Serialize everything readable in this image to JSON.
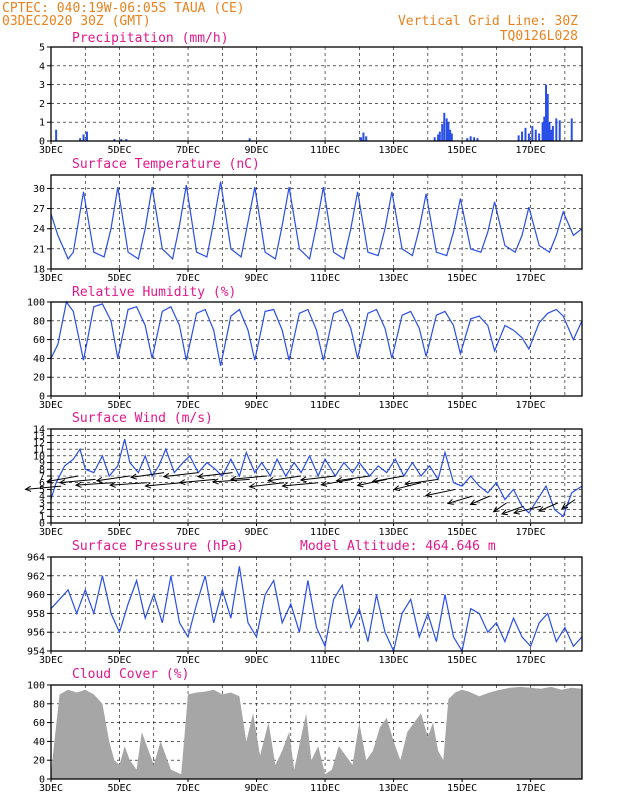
{
  "header": {
    "line1": "CPTEC:   040:19W-06:05S  TAUA (CE)",
    "line2": "03DEC2020 30Z (GMT)",
    "vgrid": "Vertical Grid Line: 30Z",
    "code": "TQ0126L028"
  },
  "colors": {
    "header": "#e8821e",
    "panel_title": "#e0198c",
    "series": "#2a4ee8",
    "cloud": "#a6a6a6",
    "wind_vector": "#000000"
  },
  "x_axis": {
    "start": "03DEC2020 30Z",
    "end_day": 18.5,
    "labels": [
      "3DEC",
      "5DEC",
      "7DEC",
      "9DEC",
      "11DEC",
      "13DEC",
      "15DEC",
      "17DEC"
    ],
    "label_days": [
      3,
      5,
      7,
      9,
      11,
      13,
      15,
      17
    ],
    "grid_days": [
      4,
      5,
      6,
      7,
      8,
      9,
      10,
      11,
      12,
      13,
      14,
      15,
      16,
      17,
      18
    ]
  },
  "chart_data": [
    {
      "id": "precip",
      "type": "bar",
      "title": "Precipitation (mm/h)",
      "ylim": [
        0,
        5
      ],
      "yticks": [
        0,
        1,
        2,
        3,
        4,
        5
      ],
      "x": [
        3.15,
        3.85,
        3.95,
        4.05,
        4.85,
        5.05,
        5.2,
        8.8,
        12.05,
        12.12,
        12.2,
        14.2,
        14.3,
        14.35,
        14.42,
        14.48,
        14.55,
        14.6,
        14.65,
        14.7,
        15.15,
        15.25,
        15.35,
        15.45,
        16.65,
        16.75,
        16.85,
        16.95,
        17.05,
        17.15,
        17.25,
        17.35,
        17.4,
        17.45,
        17.5,
        17.55,
        17.6,
        17.65,
        17.75,
        17.85,
        18.2
      ],
      "values": [
        0.6,
        0.15,
        0.35,
        0.5,
        0.1,
        0.1,
        0.1,
        0.15,
        0.2,
        0.45,
        0.25,
        0.2,
        0.35,
        0.5,
        0.9,
        1.5,
        1.2,
        1.0,
        0.6,
        0.4,
        0.15,
        0.25,
        0.2,
        0.15,
        0.3,
        0.5,
        0.7,
        0.4,
        0.8,
        0.6,
        0.4,
        1.0,
        1.3,
        3.0,
        2.5,
        1.0,
        0.6,
        0.8,
        1.2,
        1.1,
        1.2
      ]
    },
    {
      "id": "temp",
      "type": "line",
      "title": "Surface Temperature (nC)",
      "ylim": [
        18,
        32
      ],
      "yticks": [
        18,
        21,
        24,
        27,
        30
      ],
      "x": [
        3.0,
        3.2,
        3.5,
        3.65,
        3.95,
        4.25,
        4.55,
        4.75,
        4.95,
        5.25,
        5.55,
        5.75,
        5.95,
        6.25,
        6.55,
        6.75,
        6.95,
        7.25,
        7.55,
        7.75,
        7.95,
        8.25,
        8.55,
        8.75,
        8.95,
        9.25,
        9.55,
        9.75,
        9.95,
        10.25,
        10.55,
        10.75,
        10.95,
        11.25,
        11.55,
        11.75,
        11.95,
        12.25,
        12.55,
        12.75,
        12.95,
        13.25,
        13.55,
        13.75,
        13.95,
        14.25,
        14.55,
        14.75,
        14.95,
        15.25,
        15.55,
        15.75,
        15.95,
        16.25,
        16.55,
        16.75,
        16.95,
        17.25,
        17.55,
        17.75,
        17.95,
        18.25,
        18.5
      ],
      "values": [
        26.2,
        23.0,
        19.5,
        20.5,
        29.5,
        20.5,
        19.8,
        24.0,
        30.2,
        20.5,
        19.5,
        24.0,
        30.2,
        21.0,
        19.5,
        24.5,
        30.5,
        20.5,
        19.8,
        25.0,
        31.0,
        21.0,
        19.8,
        25.0,
        30.2,
        20.5,
        19.5,
        24.5,
        30.2,
        21.0,
        19.5,
        24.5,
        30.2,
        20.5,
        19.5,
        24.0,
        29.5,
        20.5,
        20.0,
        24.0,
        29.5,
        21.0,
        20.0,
        24.0,
        29.2,
        20.5,
        20.0,
        23.5,
        28.5,
        21.0,
        20.5,
        23.5,
        28.0,
        21.5,
        20.5,
        23.0,
        27.2,
        21.5,
        20.5,
        23.0,
        26.5,
        23.0,
        24.0
      ]
    },
    {
      "id": "rh",
      "type": "line",
      "title": "Relative Humidity (%)",
      "ylim": [
        0,
        100
      ],
      "yticks": [
        0,
        20,
        40,
        60,
        80,
        100
      ],
      "x": [
        3.0,
        3.2,
        3.45,
        3.65,
        3.95,
        4.25,
        4.5,
        4.75,
        4.95,
        5.25,
        5.5,
        5.75,
        5.95,
        6.25,
        6.5,
        6.75,
        6.95,
        7.25,
        7.5,
        7.75,
        7.95,
        8.25,
        8.5,
        8.75,
        8.95,
        9.25,
        9.5,
        9.75,
        9.95,
        10.25,
        10.5,
        10.75,
        10.95,
        11.25,
        11.5,
        11.75,
        11.95,
        12.25,
        12.5,
        12.75,
        12.95,
        13.25,
        13.5,
        13.75,
        13.95,
        14.25,
        14.5,
        14.75,
        14.95,
        15.25,
        15.5,
        15.75,
        15.95,
        16.25,
        16.5,
        16.75,
        16.95,
        17.25,
        17.5,
        17.75,
        17.95,
        18.25,
        18.5
      ],
      "values": [
        40,
        55,
        100,
        90,
        38,
        95,
        98,
        80,
        40,
        92,
        95,
        75,
        40,
        90,
        95,
        75,
        38,
        88,
        92,
        70,
        32,
        85,
        92,
        70,
        38,
        90,
        92,
        70,
        38,
        88,
        92,
        70,
        38,
        88,
        92,
        72,
        40,
        88,
        92,
        72,
        40,
        86,
        90,
        72,
        42,
        86,
        90,
        75,
        45,
        82,
        85,
        75,
        48,
        75,
        70,
        62,
        50,
        78,
        88,
        92,
        85,
        60,
        80
      ]
    },
    {
      "id": "wind",
      "type": "line",
      "title": "Surface Wind (m/s)",
      "ylim": [
        0,
        14
      ],
      "yticks": [
        0,
        1,
        2,
        3,
        4,
        5,
        6,
        7,
        8,
        9,
        10,
        11,
        12,
        13,
        14
      ],
      "x": [
        3.0,
        3.15,
        3.4,
        3.65,
        3.85,
        4.0,
        4.25,
        4.5,
        4.7,
        4.95,
        5.15,
        5.3,
        5.55,
        5.75,
        5.95,
        6.15,
        6.35,
        6.6,
        6.85,
        7.05,
        7.3,
        7.55,
        7.8,
        8.0,
        8.25,
        8.5,
        8.7,
        8.95,
        9.15,
        9.4,
        9.6,
        9.85,
        10.1,
        10.3,
        10.55,
        10.8,
        11.0,
        11.3,
        11.55,
        11.8,
        12.0,
        12.3,
        12.55,
        12.8,
        13.05,
        13.3,
        13.55,
        13.8,
        14.05,
        14.3,
        14.5,
        14.75,
        15.0,
        15.25,
        15.5,
        15.75,
        16.0,
        16.25,
        16.5,
        16.75,
        16.95,
        17.2,
        17.45,
        17.7,
        17.95,
        18.2,
        18.5
      ],
      "values": [
        3.5,
        6.0,
        8.5,
        9.5,
        11.0,
        8.0,
        7.5,
        10.0,
        7.0,
        8.5,
        12.5,
        9.0,
        7.5,
        10.0,
        7.0,
        8.5,
        11.0,
        7.5,
        9.0,
        10.0,
        7.5,
        9.0,
        8.0,
        7.0,
        9.5,
        7.0,
        10.5,
        7.5,
        9.0,
        7.0,
        9.5,
        7.0,
        9.0,
        7.5,
        10.0,
        7.0,
        9.5,
        7.0,
        9.0,
        7.5,
        9.0,
        7.0,
        8.5,
        7.5,
        9.5,
        7.0,
        9.0,
        7.0,
        8.5,
        6.5,
        10.5,
        6.0,
        5.5,
        7.0,
        5.5,
        4.5,
        6.0,
        3.5,
        5.0,
        2.5,
        1.5,
        3.5,
        5.5,
        2.0,
        1.0,
        4.5,
        5.5
      ],
      "vectors": {
        "x": [
          3.3,
          3.8,
          4.3,
          4.8,
          5.3,
          5.8,
          6.3,
          6.8,
          7.3,
          7.8,
          8.3,
          8.8,
          9.3,
          9.8,
          10.3,
          10.8,
          11.3,
          11.8,
          12.3,
          12.8,
          13.3,
          13.8,
          14.3,
          14.8,
          15.3,
          15.8,
          16.3,
          16.8,
          17.3,
          17.8,
          18.3
        ],
        "speed": [
          5.5,
          7.0,
          6.5,
          6.0,
          7.0,
          6.0,
          7.5,
          6.0,
          7.5,
          6.5,
          7.5,
          6.5,
          7.0,
          6.0,
          7.0,
          6.0,
          7.0,
          6.5,
          7.0,
          6.5,
          7.0,
          6.0,
          6.5,
          5.0,
          4.0,
          4.0,
          3.0,
          2.5,
          2.5,
          3.0,
          3.5
        ],
        "dir_deg": [
          200,
          215,
          200,
          195,
          210,
          195,
          210,
          200,
          205,
          200,
          205,
          195,
          200,
          205,
          210,
          200,
          205,
          215,
          210,
          220,
          215,
          225,
          210,
          220,
          230,
          240,
          250,
          235,
          225,
          240,
          250
        ]
      }
    },
    {
      "id": "pres",
      "type": "line",
      "title": "Surface Pressure (hPa)",
      "annotation": "Model Altitude: 464.646 m",
      "ylim": [
        954,
        964
      ],
      "yticks": [
        954,
        956,
        958,
        960,
        962,
        964
      ],
      "x": [
        3.0,
        3.25,
        3.5,
        3.75,
        4.0,
        4.25,
        4.5,
        4.75,
        5.0,
        5.25,
        5.5,
        5.75,
        6.0,
        6.25,
        6.5,
        6.75,
        7.0,
        7.25,
        7.5,
        7.75,
        8.0,
        8.25,
        8.5,
        8.75,
        9.0,
        9.25,
        9.5,
        9.75,
        10.0,
        10.25,
        10.5,
        10.75,
        11.0,
        11.25,
        11.5,
        11.75,
        12.0,
        12.25,
        12.5,
        12.75,
        13.0,
        13.25,
        13.5,
        13.75,
        14.0,
        14.25,
        14.5,
        14.75,
        15.0,
        15.25,
        15.5,
        15.75,
        16.0,
        16.25,
        16.5,
        16.75,
        17.0,
        17.25,
        17.5,
        17.75,
        18.0,
        18.25,
        18.5
      ],
      "values": [
        958.5,
        959.5,
        960.5,
        958.0,
        960.5,
        958.0,
        962.0,
        958.0,
        956.0,
        959.0,
        961.5,
        957.5,
        960.0,
        957.0,
        962.0,
        957.0,
        955.5,
        959.0,
        962.0,
        957.0,
        960.5,
        957.5,
        963.0,
        957.0,
        955.5,
        960.0,
        961.5,
        957.0,
        959.0,
        956.0,
        961.5,
        956.5,
        954.5,
        959.5,
        961.0,
        956.5,
        958.5,
        955.0,
        960.0,
        956.0,
        954.0,
        958.0,
        959.5,
        955.5,
        958.0,
        955.0,
        960.0,
        955.5,
        954.0,
        958.5,
        958.0,
        956.0,
        957.0,
        955.0,
        957.5,
        955.5,
        954.5,
        957.0,
        958.0,
        955.0,
        956.5,
        954.5,
        955.5
      ]
    },
    {
      "id": "cloud",
      "type": "area",
      "title": "Cloud Cover (%)",
      "ylim": [
        0,
        100
      ],
      "yticks": [
        0,
        20,
        40,
        60,
        80,
        100
      ],
      "x": [
        3.0,
        3.1,
        3.25,
        3.5,
        3.75,
        4.0,
        4.25,
        4.5,
        4.7,
        4.85,
        5.0,
        5.15,
        5.3,
        5.5,
        5.65,
        5.85,
        6.0,
        6.2,
        6.5,
        6.8,
        7.0,
        7.25,
        7.5,
        7.75,
        8.0,
        8.25,
        8.5,
        8.7,
        8.9,
        9.1,
        9.35,
        9.55,
        9.75,
        9.95,
        10.1,
        10.3,
        10.45,
        10.6,
        10.8,
        11.0,
        11.2,
        11.4,
        11.6,
        11.8,
        12.0,
        12.2,
        12.4,
        12.6,
        12.8,
        13.0,
        13.2,
        13.4,
        13.6,
        13.8,
        14.0,
        14.15,
        14.3,
        14.45,
        14.6,
        14.8,
        15.0,
        15.2,
        15.5,
        15.8,
        16.1,
        16.4,
        16.7,
        17.0,
        17.3,
        17.6,
        17.9,
        18.2,
        18.5
      ],
      "values": [
        5,
        40,
        90,
        95,
        92,
        95,
        90,
        80,
        40,
        20,
        15,
        35,
        20,
        10,
        50,
        30,
        15,
        40,
        10,
        5,
        90,
        92,
        93,
        95,
        90,
        92,
        88,
        40,
        70,
        25,
        60,
        15,
        30,
        50,
        10,
        45,
        70,
        20,
        35,
        5,
        10,
        35,
        25,
        15,
        60,
        20,
        30,
        55,
        65,
        40,
        20,
        50,
        60,
        70,
        45,
        60,
        30,
        20,
        85,
        92,
        95,
        93,
        88,
        92,
        95,
        97,
        98,
        97,
        96,
        98,
        95,
        97,
        96
      ]
    }
  ]
}
